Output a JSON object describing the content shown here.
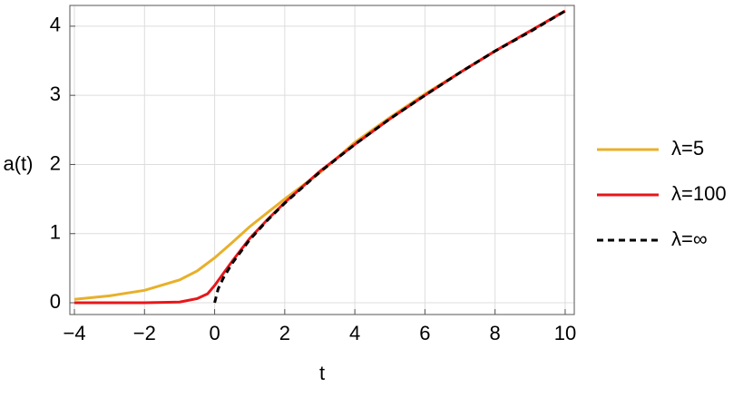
{
  "chart_data": {
    "type": "line",
    "x_label": "t",
    "y_label": "a(t)",
    "xlim": [
      -4.13,
      10.26
    ],
    "ylim": [
      -0.17,
      4.3
    ],
    "xticks": [
      {
        "value": -4,
        "label": "−4"
      },
      {
        "value": -2,
        "label": "−2"
      },
      0,
      2,
      4,
      6,
      8,
      10
    ],
    "yticks": [
      0,
      1,
      2,
      3,
      4
    ],
    "grid": true,
    "legend": "right",
    "series": [
      {
        "name": "λ=5",
        "color": "#e8b02a",
        "x": [
          -4,
          -3,
          -2,
          -1,
          -0.5,
          0,
          0.5,
          1,
          1.5,
          2,
          3,
          4,
          5,
          6,
          7,
          8,
          9,
          10
        ],
        "values": [
          0.05,
          0.1,
          0.18,
          0.33,
          0.46,
          0.65,
          0.87,
          1.1,
          1.3,
          1.5,
          1.88,
          2.32,
          2.68,
          3.02,
          3.33,
          3.64,
          3.93,
          4.22
        ]
      },
      {
        "name": "λ=100",
        "color": "#e8161a",
        "x": [
          -4,
          -3,
          -2,
          -1,
          -0.5,
          -0.2,
          0,
          0.5,
          1,
          1.5,
          2,
          3,
          4,
          5,
          6,
          7,
          8,
          9,
          10
        ],
        "values": [
          0,
          0,
          0,
          0.01,
          0.06,
          0.13,
          0.25,
          0.6,
          0.93,
          1.2,
          1.45,
          1.9,
          2.29,
          2.66,
          3.0,
          3.33,
          3.64,
          3.93,
          4.22
        ]
      },
      {
        "name": "λ=∞",
        "color": "#000000",
        "dashed": true,
        "x": [
          0,
          0.1,
          0.25,
          0.5,
          1,
          1.5,
          2,
          3,
          4,
          5,
          6,
          7,
          8,
          9,
          10
        ],
        "values": [
          0,
          0.2,
          0.36,
          0.57,
          0.91,
          1.19,
          1.44,
          1.89,
          2.29,
          2.66,
          3.0,
          3.33,
          3.64,
          3.92,
          4.22
        ]
      }
    ]
  }
}
